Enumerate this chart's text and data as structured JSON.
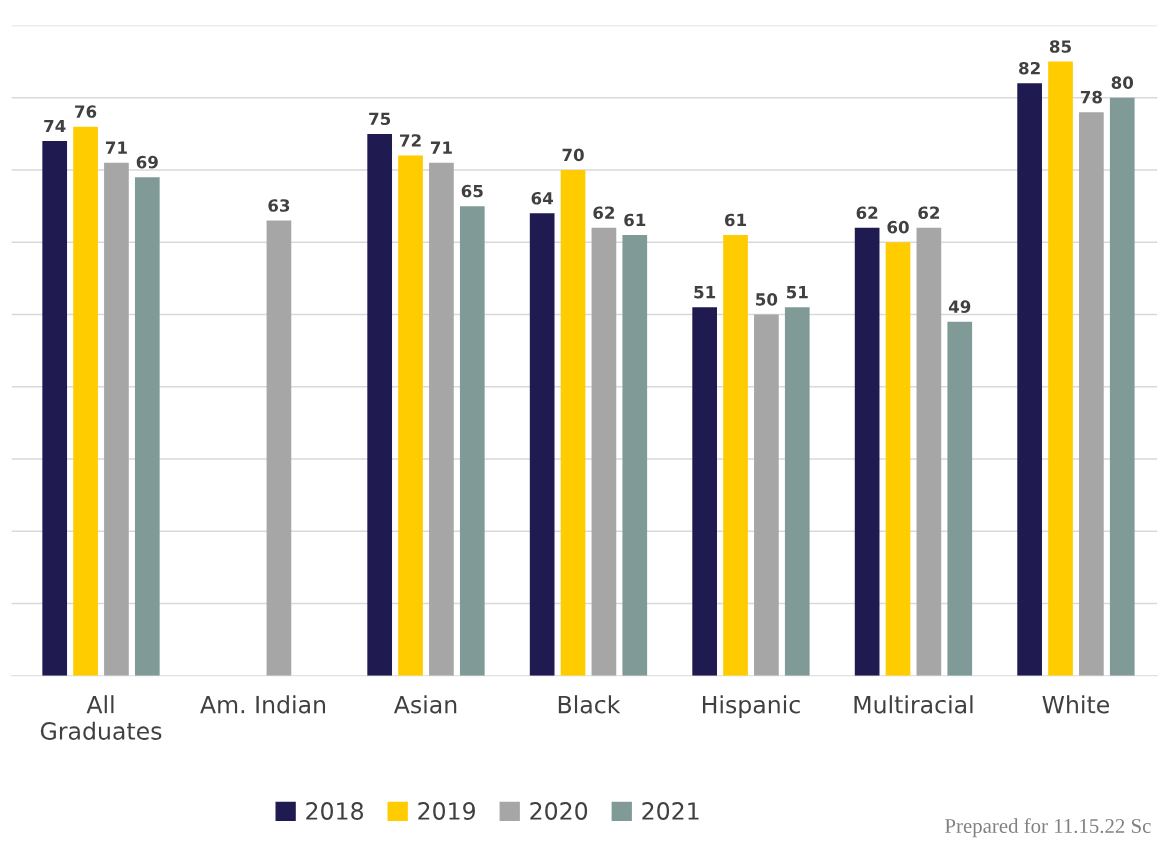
{
  "chart_data": {
    "type": "bar",
    "categories": [
      "All\nGraduates",
      "Am. Indian",
      "Asian",
      "Black",
      "Hispanic",
      "Multiracial",
      "White"
    ],
    "series": [
      {
        "name": "2018",
        "color": "#1f1a4f",
        "values": [
          74,
          null,
          75,
          64,
          51,
          62,
          82
        ]
      },
      {
        "name": "2019",
        "color": "#ffcc00",
        "values": [
          76,
          null,
          72,
          70,
          61,
          60,
          85
        ]
      },
      {
        "name": "2020",
        "color": "#a6a6a6",
        "values": [
          71,
          63,
          71,
          62,
          50,
          62,
          78
        ]
      },
      {
        "name": "2021",
        "color": "#7f9a97",
        "values": [
          69,
          null,
          65,
          61,
          51,
          49,
          80
        ]
      }
    ],
    "ylim": [
      0,
      90
    ],
    "yticks": [
      {
        "value": 10,
        "label": null
      },
      {
        "value": 20,
        "label": null
      },
      {
        "value": 30,
        "label": null
      },
      {
        "value": 40,
        "label": null
      },
      {
        "value": 50,
        "label": null
      },
      {
        "value": 60,
        "label": null
      },
      {
        "value": 70,
        "label": null
      },
      {
        "value": 80,
        "label": null
      },
      {
        "value": 90,
        "label": null
      }
    ],
    "tick_labels": "x",
    "grid": "y",
    "legend": "bottom",
    "data_labels": true,
    "annotations": [
      "Prepared for 11.15.22 Sc"
    ]
  }
}
